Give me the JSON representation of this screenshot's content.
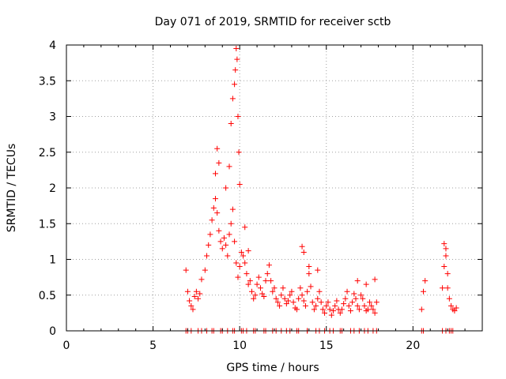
{
  "chart_data": {
    "type": "scatter",
    "title": "Day 071 of 2019, SRMTID for receiver sctb",
    "xlabel": "GPS time / hours",
    "ylabel": "SRMTID / TECUs",
    "xlim": [
      0,
      24
    ],
    "ylim": [
      0,
      4
    ],
    "xticks": [
      0,
      5,
      10,
      15,
      20
    ],
    "yticks": [
      0,
      0.5,
      1,
      1.5,
      2,
      2.5,
      3,
      3.5,
      4
    ],
    "xtick_labels": [
      "0",
      "5",
      "10",
      "15",
      "20"
    ],
    "ytick_labels": [
      "0",
      "0.5",
      "1",
      "1.5",
      "2",
      "2.5",
      "3",
      "3.5",
      "4"
    ],
    "grid": true,
    "marker": "+",
    "color": "#ff0000",
    "series": [
      {
        "name": "SRMTID",
        "x": [
          6.9,
          7.0,
          7.1,
          7.2,
          7.3,
          7.4,
          7.5,
          7.6,
          7.7,
          7.8,
          8.0,
          8.1,
          8.2,
          8.3,
          8.4,
          8.5,
          8.6,
          8.7,
          8.8,
          8.9,
          9.0,
          9.1,
          9.2,
          9.3,
          9.4,
          9.5,
          9.6,
          9.7,
          9.8,
          9.9,
          10.0,
          10.1,
          10.2,
          10.3,
          10.4,
          10.5,
          10.6,
          10.7,
          10.8,
          10.9,
          11.0,
          11.1,
          11.2,
          11.3,
          11.4,
          11.5,
          11.6,
          11.7,
          11.8,
          11.9,
          12.0,
          12.1,
          12.2,
          12.3,
          12.4,
          12.5,
          12.6,
          12.7,
          12.8,
          12.9,
          13.0,
          13.1,
          13.2,
          13.3,
          13.4,
          13.5,
          13.6,
          13.7,
          13.8,
          13.9,
          14.0,
          14.1,
          14.2,
          14.3,
          14.4,
          14.5,
          14.6,
          14.7,
          14.8,
          14.9,
          15.0,
          15.1,
          15.2,
          15.3,
          15.4,
          15.5,
          15.6,
          15.7,
          15.8,
          15.9,
          16.0,
          16.1,
          16.2,
          16.3,
          16.4,
          16.5,
          16.6,
          16.7,
          16.8,
          16.9,
          17.0,
          17.1,
          17.2,
          17.3,
          17.4,
          17.5,
          17.6,
          17.7,
          17.8,
          17.9,
          20.5,
          20.6,
          20.7,
          21.7,
          21.8,
          21.9,
          22.0,
          22.1,
          22.2,
          22.3,
          22.4,
          22.5,
          8.6,
          8.7,
          8.8,
          9.2,
          9.4,
          9.5,
          9.6,
          9.7,
          9.75,
          9.8,
          9.85,
          9.9,
          9.95,
          10.0,
          10.3,
          10.5,
          13.6,
          13.7,
          14.0,
          14.5,
          16.8,
          17.3,
          17.8,
          21.8,
          21.9,
          22.0,
          6.9,
          7.2,
          7.6,
          8.1,
          8.4,
          8.9,
          9.3,
          9.6,
          10.1,
          10.4,
          10.9,
          11.4,
          11.9,
          12.4,
          12.9,
          13.4,
          13.9,
          14.4,
          14.9,
          15.4,
          15.9,
          16.4,
          16.9,
          17.4,
          17.9,
          20.5,
          20.6,
          21.7,
          21.9,
          22.1,
          22.3,
          7.0,
          7.8,
          8.5,
          9.0,
          9.7,
          10.2,
          10.8,
          11.5,
          12.1,
          12.7,
          13.3,
          13.9,
          14.6,
          15.2,
          15.8,
          16.6,
          17.2,
          17.7,
          22.2
        ],
        "y": [
          0.85,
          0.55,
          0.42,
          0.35,
          0.3,
          0.48,
          0.55,
          0.45,
          0.52,
          0.72,
          0.85,
          1.05,
          1.2,
          1.35,
          1.55,
          1.72,
          1.85,
          1.65,
          1.4,
          1.25,
          1.15,
          1.3,
          1.2,
          1.05,
          1.35,
          1.5,
          1.7,
          1.25,
          0.95,
          0.75,
          0.9,
          1.1,
          1.05,
          0.95,
          0.8,
          0.65,
          0.7,
          0.55,
          0.45,
          0.5,
          0.65,
          0.75,
          0.6,
          0.52,
          0.48,
          0.7,
          0.8,
          0.92,
          0.7,
          0.55,
          0.6,
          0.45,
          0.4,
          0.35,
          0.5,
          0.6,
          0.45,
          0.38,
          0.42,
          0.5,
          0.55,
          0.4,
          0.32,
          0.3,
          0.45,
          0.6,
          0.5,
          0.42,
          0.35,
          0.55,
          0.8,
          0.62,
          0.4,
          0.3,
          0.35,
          0.45,
          0.55,
          0.4,
          0.3,
          0.25,
          0.35,
          0.4,
          0.3,
          0.22,
          0.28,
          0.35,
          0.42,
          0.3,
          0.25,
          0.3,
          0.38,
          0.45,
          0.55,
          0.35,
          0.28,
          0.4,
          0.52,
          0.45,
          0.35,
          0.3,
          0.5,
          0.45,
          0.35,
          0.28,
          0.3,
          0.4,
          0.35,
          0.3,
          0.25,
          0.4,
          0.3,
          0.55,
          0.7,
          0.6,
          0.9,
          1.15,
          0.6,
          0.45,
          0.35,
          0.3,
          0.28,
          0.32,
          2.2,
          2.55,
          2.35,
          2.0,
          2.3,
          2.9,
          3.25,
          3.45,
          3.65,
          3.95,
          3.8,
          3.0,
          2.5,
          2.05,
          1.45,
          1.12,
          1.18,
          1.1,
          0.9,
          0.85,
          0.7,
          0.65,
          0.72,
          1.22,
          1.05,
          0.8,
          0.0,
          0.0,
          0.0,
          0.0,
          0.0,
          0.0,
          0.0,
          0.0,
          0.0,
          0.0,
          0.0,
          0.0,
          0.0,
          0.0,
          0.0,
          0.0,
          0.0,
          0.0,
          0.0,
          0.0,
          0.0,
          0.0,
          0.0,
          0.0,
          0.0,
          0.0,
          0.0,
          0.0,
          0.0,
          0.0,
          0.0,
          0.0,
          0.0,
          0.0,
          0.0,
          0.0,
          0.0,
          0.0,
          0.0,
          0.0,
          0.0,
          0.0,
          0.0,
          0.0,
          0.0,
          0.0,
          0.0,
          0.0,
          0.0,
          0.0
        ]
      }
    ]
  }
}
